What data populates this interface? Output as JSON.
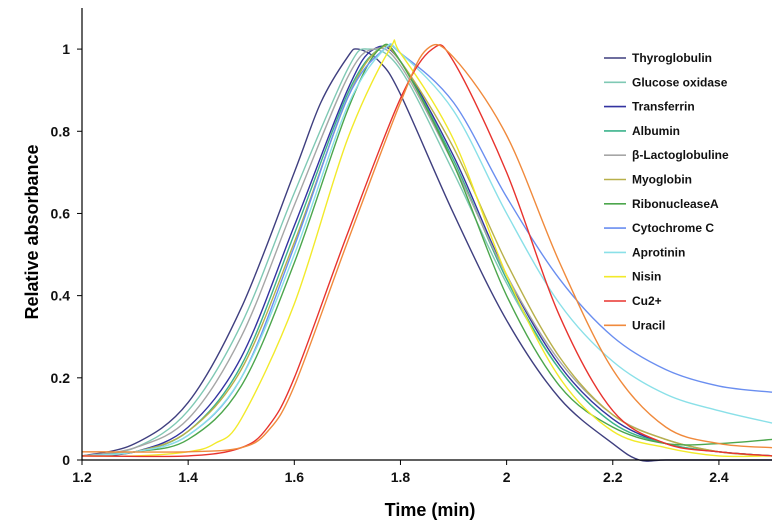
{
  "chart_data": {
    "type": "line",
    "xlabel": "Time (min)",
    "ylabel": "Relative absorbance",
    "xlim": [
      1.2,
      2.5
    ],
    "ylim": [
      0,
      1.1
    ],
    "xticks": [
      1.2,
      1.4,
      1.6,
      1.8,
      2,
      2.2,
      2.4
    ],
    "yticks": [
      0,
      0.2,
      0.4,
      0.6,
      0.8,
      1
    ],
    "grid": false,
    "legend_position": "top-right",
    "series": [
      {
        "name": "Thyroglobulin",
        "color": "#3f3f7f",
        "x": [
          1.2,
          1.3,
          1.4,
          1.5,
          1.6,
          1.65,
          1.7,
          1.72,
          1.76,
          1.8,
          1.9,
          2.0,
          2.1,
          2.2,
          2.25,
          2.3,
          2.4,
          2.5
        ],
        "y": [
          0.01,
          0.04,
          0.14,
          0.37,
          0.7,
          0.87,
          0.98,
          1.0,
          0.97,
          0.89,
          0.6,
          0.34,
          0.15,
          0.04,
          0.0,
          0.0,
          0.0,
          0.0
        ]
      },
      {
        "name": "Glucose oxidase",
        "color": "#7fc9b4",
        "x": [
          1.2,
          1.3,
          1.4,
          1.5,
          1.6,
          1.7,
          1.74,
          1.8,
          1.9,
          2.0,
          2.1,
          2.2,
          2.3,
          2.4,
          2.5
        ],
        "y": [
          0.01,
          0.03,
          0.12,
          0.33,
          0.65,
          0.95,
          1.0,
          0.95,
          0.7,
          0.43,
          0.22,
          0.09,
          0.04,
          0.02,
          0.01
        ]
      },
      {
        "name": "Transferrin",
        "color": "#3333a0",
        "x": [
          1.2,
          1.3,
          1.4,
          1.5,
          1.6,
          1.7,
          1.75,
          1.8,
          1.9,
          2.0,
          2.1,
          2.2,
          2.3,
          2.4,
          2.5
        ],
        "y": [
          0.01,
          0.02,
          0.08,
          0.25,
          0.57,
          0.9,
          1.0,
          0.97,
          0.74,
          0.45,
          0.23,
          0.1,
          0.04,
          0.02,
          0.01
        ]
      },
      {
        "name": "Albumin",
        "color": "#3cb38c",
        "x": [
          1.2,
          1.3,
          1.4,
          1.5,
          1.6,
          1.7,
          1.76,
          1.8,
          1.9,
          2.0,
          2.1,
          2.2,
          2.3,
          2.4,
          2.5
        ],
        "y": [
          0.01,
          0.02,
          0.07,
          0.23,
          0.55,
          0.89,
          1.0,
          0.97,
          0.73,
          0.44,
          0.22,
          0.09,
          0.04,
          0.02,
          0.01
        ]
      },
      {
        "name": "β-Lactoglobuline",
        "color": "#a6a6a6",
        "x": [
          1.2,
          1.3,
          1.4,
          1.5,
          1.6,
          1.7,
          1.75,
          1.8,
          1.9,
          2.0,
          2.1,
          2.2,
          2.3,
          2.4,
          2.5
        ],
        "y": [
          0.01,
          0.03,
          0.1,
          0.3,
          0.62,
          0.93,
          1.0,
          0.96,
          0.72,
          0.45,
          0.24,
          0.11,
          0.05,
          0.02,
          0.01
        ]
      },
      {
        "name": "Myoglobin",
        "color": "#b8b04a",
        "x": [
          1.2,
          1.3,
          1.4,
          1.5,
          1.6,
          1.7,
          1.76,
          1.8,
          1.9,
          2.0,
          2.1,
          2.2,
          2.3,
          2.4,
          2.5
        ],
        "y": [
          0.01,
          0.02,
          0.07,
          0.22,
          0.53,
          0.88,
          1.0,
          0.97,
          0.76,
          0.48,
          0.25,
          0.11,
          0.05,
          0.02,
          0.01
        ]
      },
      {
        "name": "RibonucleaseA",
        "color": "#4ca64c",
        "x": [
          1.2,
          1.3,
          1.4,
          1.5,
          1.6,
          1.7,
          1.76,
          1.8,
          1.9,
          2.0,
          2.1,
          2.2,
          2.3,
          2.4,
          2.5
        ],
        "y": [
          0.01,
          0.02,
          0.05,
          0.18,
          0.48,
          0.85,
          1.0,
          0.97,
          0.72,
          0.4,
          0.18,
          0.08,
          0.04,
          0.04,
          0.05
        ]
      },
      {
        "name": "Cytochrome C",
        "color": "#6a8ef0",
        "x": [
          1.2,
          1.3,
          1.4,
          1.5,
          1.6,
          1.7,
          1.77,
          1.8,
          1.9,
          2.0,
          2.1,
          2.2,
          2.3,
          2.4,
          2.5
        ],
        "y": [
          0.01,
          0.02,
          0.06,
          0.2,
          0.52,
          0.88,
          1.0,
          0.99,
          0.87,
          0.64,
          0.44,
          0.3,
          0.22,
          0.18,
          0.165
        ]
      },
      {
        "name": "Aprotinin",
        "color": "#8ae0e8",
        "x": [
          1.2,
          1.3,
          1.4,
          1.5,
          1.6,
          1.7,
          1.77,
          1.8,
          1.9,
          2.0,
          2.1,
          2.2,
          2.3,
          2.4,
          2.5
        ],
        "y": [
          0.01,
          0.02,
          0.06,
          0.2,
          0.5,
          0.86,
          1.0,
          0.99,
          0.85,
          0.6,
          0.38,
          0.24,
          0.16,
          0.12,
          0.09
        ]
      },
      {
        "name": "Nisin",
        "color": "#f2ea2a",
        "x": [
          1.2,
          1.3,
          1.4,
          1.45,
          1.5,
          1.6,
          1.7,
          1.78,
          1.8,
          1.9,
          2.0,
          2.1,
          2.2,
          2.3,
          2.4,
          2.5
        ],
        "y": [
          0.01,
          0.01,
          0.02,
          0.04,
          0.1,
          0.38,
          0.78,
          1.0,
          0.99,
          0.78,
          0.45,
          0.2,
          0.07,
          0.03,
          0.01,
          0.01
        ]
      },
      {
        "name": "Cu2+",
        "color": "#e8332e",
        "x": [
          1.2,
          1.4,
          1.5,
          1.55,
          1.6,
          1.7,
          1.8,
          1.86,
          1.9,
          2.0,
          2.1,
          2.2,
          2.3,
          2.4,
          2.5
        ],
        "y": [
          0.01,
          0.01,
          0.03,
          0.08,
          0.2,
          0.55,
          0.88,
          1.0,
          0.97,
          0.7,
          0.35,
          0.12,
          0.04,
          0.02,
          0.01
        ]
      },
      {
        "name": "Uracil",
        "color": "#f08a3c",
        "x": [
          1.2,
          1.4,
          1.5,
          1.55,
          1.6,
          1.7,
          1.8,
          1.85,
          1.9,
          2.0,
          2.1,
          2.2,
          2.3,
          2.4,
          2.5
        ],
        "y": [
          0.02,
          0.02,
          0.03,
          0.07,
          0.18,
          0.53,
          0.87,
          1.0,
          0.98,
          0.79,
          0.48,
          0.22,
          0.08,
          0.04,
          0.03
        ]
      }
    ]
  }
}
